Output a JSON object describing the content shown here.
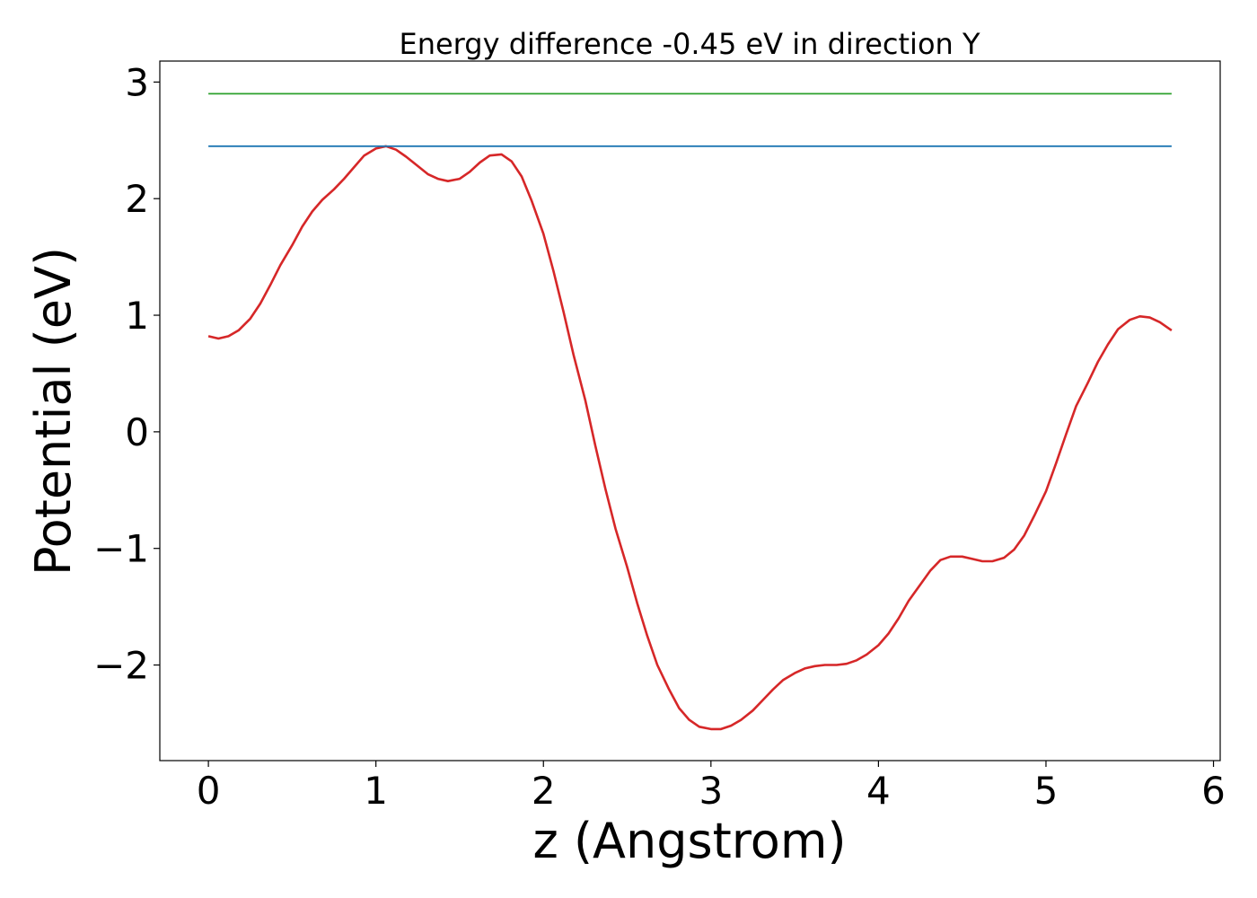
{
  "chart_data": {
    "type": "line",
    "title": "Energy difference -0.45 eV in direction Y",
    "xlabel": "z (Angstrom)",
    "ylabel": "Potential (eV)",
    "xlim": [
      -0.29,
      6.04
    ],
    "ylim": [
      -2.82,
      3.18
    ],
    "grid": false,
    "x_ticks": [
      {
        "value": 0,
        "label": "0"
      },
      {
        "value": 1,
        "label": "1"
      },
      {
        "value": 2,
        "label": "2"
      },
      {
        "value": 3,
        "label": "3"
      },
      {
        "value": 4,
        "label": "4"
      },
      {
        "value": 5,
        "label": "5"
      },
      {
        "value": 6,
        "label": "6"
      }
    ],
    "y_ticks": [
      {
        "value": -2,
        "label": "−2"
      },
      {
        "value": -1,
        "label": "−1"
      },
      {
        "value": 0,
        "label": "0"
      },
      {
        "value": 1,
        "label": "1"
      },
      {
        "value": 2,
        "label": "2"
      },
      {
        "value": 3,
        "label": "3"
      }
    ],
    "series": [
      {
        "color": "#d62728",
        "points": [
          [
            0.0,
            0.82
          ],
          [
            0.06,
            0.8
          ],
          [
            0.12,
            0.82
          ],
          [
            0.18,
            0.87
          ],
          [
            0.25,
            0.97
          ],
          [
            0.31,
            1.1
          ],
          [
            0.37,
            1.26
          ],
          [
            0.43,
            1.43
          ],
          [
            0.5,
            1.6
          ],
          [
            0.56,
            1.76
          ],
          [
            0.62,
            1.89
          ],
          [
            0.68,
            1.99
          ],
          [
            0.75,
            2.08
          ],
          [
            0.81,
            2.17
          ],
          [
            0.87,
            2.27
          ],
          [
            0.93,
            2.37
          ],
          [
            1.0,
            2.43
          ],
          [
            1.06,
            2.45
          ],
          [
            1.12,
            2.42
          ],
          [
            1.18,
            2.36
          ],
          [
            1.25,
            2.28
          ],
          [
            1.31,
            2.21
          ],
          [
            1.37,
            2.17
          ],
          [
            1.43,
            2.15
          ],
          [
            1.5,
            2.17
          ],
          [
            1.56,
            2.23
          ],
          [
            1.62,
            2.31
          ],
          [
            1.68,
            2.37
          ],
          [
            1.75,
            2.38
          ],
          [
            1.81,
            2.32
          ],
          [
            1.87,
            2.19
          ],
          [
            1.93,
            1.98
          ],
          [
            2.0,
            1.7
          ],
          [
            2.06,
            1.38
          ],
          [
            2.12,
            1.03
          ],
          [
            2.18,
            0.66
          ],
          [
            2.25,
            0.27
          ],
          [
            2.31,
            -0.12
          ],
          [
            2.37,
            -0.49
          ],
          [
            2.43,
            -0.83
          ],
          [
            2.5,
            -1.16
          ],
          [
            2.56,
            -1.47
          ],
          [
            2.62,
            -1.75
          ],
          [
            2.68,
            -2.0
          ],
          [
            2.75,
            -2.21
          ],
          [
            2.81,
            -2.37
          ],
          [
            2.87,
            -2.47
          ],
          [
            2.93,
            -2.53
          ],
          [
            3.0,
            -2.55
          ],
          [
            3.06,
            -2.55
          ],
          [
            3.12,
            -2.52
          ],
          [
            3.18,
            -2.47
          ],
          [
            3.25,
            -2.39
          ],
          [
            3.31,
            -2.3
          ],
          [
            3.37,
            -2.21
          ],
          [
            3.43,
            -2.13
          ],
          [
            3.5,
            -2.07
          ],
          [
            3.56,
            -2.03
          ],
          [
            3.62,
            -2.01
          ],
          [
            3.68,
            -2.0
          ],
          [
            3.75,
            -2.0
          ],
          [
            3.81,
            -1.99
          ],
          [
            3.87,
            -1.96
          ],
          [
            3.93,
            -1.91
          ],
          [
            4.0,
            -1.83
          ],
          [
            4.06,
            -1.73
          ],
          [
            4.12,
            -1.6
          ],
          [
            4.18,
            -1.45
          ],
          [
            4.25,
            -1.31
          ],
          [
            4.31,
            -1.19
          ],
          [
            4.37,
            -1.1
          ],
          [
            4.43,
            -1.07
          ],
          [
            4.5,
            -1.07
          ],
          [
            4.56,
            -1.09
          ],
          [
            4.62,
            -1.11
          ],
          [
            4.68,
            -1.11
          ],
          [
            4.75,
            -1.08
          ],
          [
            4.81,
            -1.01
          ],
          [
            4.87,
            -0.89
          ],
          [
            4.93,
            -0.72
          ],
          [
            5.0,
            -0.51
          ],
          [
            5.06,
            -0.27
          ],
          [
            5.12,
            -0.02
          ],
          [
            5.18,
            0.22
          ],
          [
            5.25,
            0.42
          ],
          [
            5.31,
            0.6
          ],
          [
            5.37,
            0.75
          ],
          [
            5.43,
            0.88
          ],
          [
            5.5,
            0.96
          ],
          [
            5.56,
            0.99
          ],
          [
            5.62,
            0.98
          ],
          [
            5.68,
            0.94
          ],
          [
            5.75,
            0.87
          ]
        ]
      },
      {
        "color": "#1f77b4",
        "points": [
          [
            0.0,
            2.45
          ],
          [
            5.75,
            2.45
          ]
        ]
      },
      {
        "color": "#2ca02c",
        "points": [
          [
            0.0,
            2.9
          ],
          [
            5.75,
            2.9
          ]
        ]
      }
    ]
  }
}
